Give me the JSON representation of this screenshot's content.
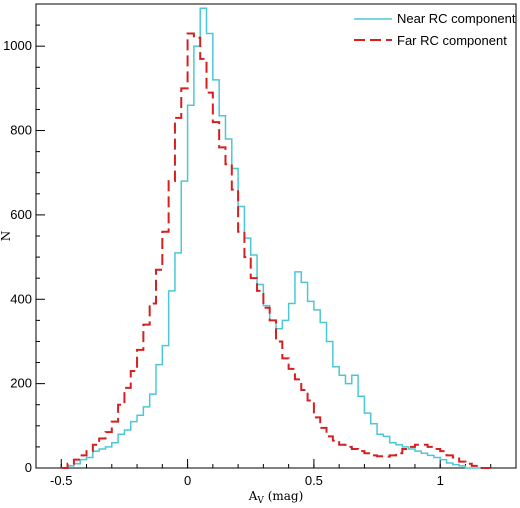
{
  "chart_data": {
    "type": "histogram",
    "title": "",
    "xlabel": "A",
    "xlabel_sub": "V",
    "xlabel_suffix": " (mag)",
    "ylabel": "N",
    "xlim": [
      -0.6,
      1.3
    ],
    "ylim": [
      0,
      1100
    ],
    "xticks": [
      -0.5,
      0,
      0.5,
      1
    ],
    "xtick_labels": [
      "-0.5",
      "0",
      "0.5",
      "1"
    ],
    "yticks": [
      0,
      200,
      400,
      600,
      800,
      1000
    ],
    "ytick_labels": [
      "0",
      "200",
      "400",
      "600",
      "800",
      "1000"
    ],
    "grid": false,
    "legend_position": "top-right",
    "bin_edges": [
      -0.5,
      -0.475,
      -0.45,
      -0.425,
      -0.4,
      -0.375,
      -0.35,
      -0.325,
      -0.3,
      -0.275,
      -0.25,
      -0.225,
      -0.2,
      -0.175,
      -0.15,
      -0.125,
      -0.1,
      -0.075,
      -0.05,
      -0.025,
      0.0,
      0.025,
      0.05,
      0.075,
      0.1,
      0.125,
      0.15,
      0.175,
      0.2,
      0.225,
      0.25,
      0.275,
      0.3,
      0.325,
      0.35,
      0.375,
      0.4,
      0.425,
      0.45,
      0.475,
      0.5,
      0.525,
      0.55,
      0.575,
      0.6,
      0.625,
      0.65,
      0.675,
      0.7,
      0.725,
      0.75,
      0.775,
      0.8,
      0.825,
      0.85,
      0.875,
      0.9,
      0.925,
      0.95,
      0.975,
      1.0,
      1.025,
      1.05,
      1.075,
      1.1,
      1.125,
      1.15,
      1.175,
      1.2
    ],
    "series": [
      {
        "name": "Near RC component",
        "color": "#4cc8d4",
        "style": "solid",
        "values": [
          0,
          5,
          10,
          20,
          25,
          40,
          45,
          50,
          60,
          80,
          90,
          110,
          125,
          145,
          175,
          245,
          290,
          420,
          510,
          680,
          860,
          1000,
          1090,
          1030,
          920,
          835,
          780,
          710,
          620,
          545,
          505,
          435,
          385,
          350,
          330,
          350,
          390,
          465,
          440,
          395,
          375,
          345,
          300,
          240,
          220,
          200,
          220,
          170,
          130,
          105,
          80,
          75,
          60,
          55,
          50,
          45,
          40,
          35,
          30,
          25,
          20,
          12,
          8,
          5,
          0,
          0,
          0,
          0
        ]
      },
      {
        "name": "Far RC component",
        "color": "#d42020",
        "style": "dashed",
        "values": [
          0,
          10,
          20,
          30,
          40,
          55,
          70,
          85,
          110,
          150,
          190,
          230,
          280,
          340,
          390,
          470,
          560,
          680,
          830,
          900,
          1030,
          1020,
          970,
          890,
          820,
          760,
          720,
          660,
          560,
          500,
          450,
          420,
          380,
          350,
          300,
          260,
          235,
          210,
          185,
          160,
          120,
          95,
          75,
          65,
          55,
          50,
          45,
          40,
          35,
          30,
          28,
          27,
          30,
          35,
          45,
          50,
          55,
          55,
          50,
          45,
          40,
          30,
          25,
          15,
          10,
          5,
          0,
          0
        ]
      }
    ]
  }
}
